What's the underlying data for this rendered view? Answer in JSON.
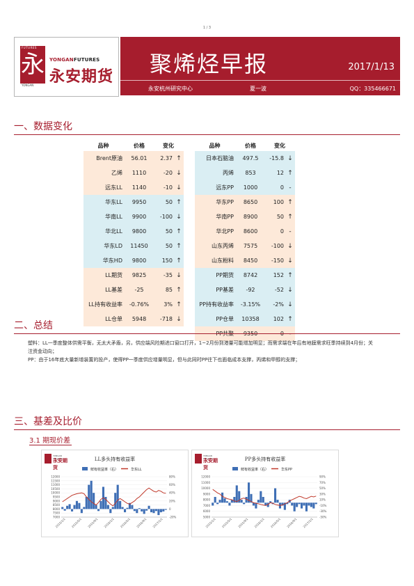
{
  "page_number": "1 / 3",
  "header": {
    "logo_futures": "FUTURES",
    "logo_yongan_small": "YONGAN",
    "logo_en_a": "YONGAN",
    "logo_en_b": "FUTURES",
    "logo_cn": "永安期货",
    "logo_glyph": "永",
    "title": "聚烯烃早报",
    "date": "2017/1/13",
    "org": "永安杭州研究中心",
    "author": "夏一波",
    "qq": "QQ：335466671",
    "brand_color": "#a61d2d"
  },
  "sections": {
    "s1": "一、数据变化",
    "s2": "二、总结",
    "s3": "三、基差及比价",
    "s3_1": "3.1 期现价差"
  },
  "table_headers": {
    "name": "品种",
    "price": "价格",
    "change": "变化"
  },
  "table_left": [
    {
      "name": "Brent原油",
      "price": "56.01",
      "change": "2.37",
      "arrow": "↑",
      "bg": "orange"
    },
    {
      "name": "乙烯",
      "price": "1110",
      "change": "-20",
      "arrow": "↓",
      "bg": "orange"
    },
    {
      "name": "远东LL",
      "price": "1140",
      "change": "-10",
      "arrow": "↓",
      "bg": "orange"
    },
    {
      "name": "华东LL",
      "price": "9950",
      "change": "50",
      "arrow": "↑",
      "bg": "blue"
    },
    {
      "name": "华南LL",
      "price": "9900",
      "change": "-100",
      "arrow": "↓",
      "bg": "blue"
    },
    {
      "name": "华北LL",
      "price": "9800",
      "change": "50",
      "arrow": "↑",
      "bg": "blue"
    },
    {
      "name": "华东LD",
      "price": "11450",
      "change": "50",
      "arrow": "↑",
      "bg": "blue"
    },
    {
      "name": "华东HD",
      "price": "9800",
      "change": "150",
      "arrow": "↑",
      "bg": "blue"
    },
    {
      "name": "LL期货",
      "price": "9825",
      "change": "-35",
      "arrow": "↓",
      "bg": "orange"
    },
    {
      "name": "LL基差",
      "price": "-25",
      "change": "85",
      "arrow": "↑",
      "bg": "orange"
    },
    {
      "name": "LL持有收益率",
      "price": "-0.76%",
      "change": "3%",
      "arrow": "↑",
      "bg": "orange"
    },
    {
      "name": "LL仓单",
      "price": "5948",
      "change": "-718",
      "arrow": "↓",
      "bg": "orange"
    }
  ],
  "table_right": [
    {
      "name": "日本石脑油",
      "price": "497.5",
      "change": "-15.8",
      "arrow": "↓",
      "bg": "blue"
    },
    {
      "name": "丙烯",
      "price": "853",
      "change": "12",
      "arrow": "↑",
      "bg": "blue"
    },
    {
      "name": "远东PP",
      "price": "1000",
      "change": "0",
      "arrow": "-",
      "bg": "blue"
    },
    {
      "name": "华东PP",
      "price": "8650",
      "change": "100",
      "arrow": "↑",
      "bg": "orange"
    },
    {
      "name": "华南PP",
      "price": "8900",
      "change": "50",
      "arrow": "↑",
      "bg": "orange"
    },
    {
      "name": "华北PP",
      "price": "8600",
      "change": "0",
      "arrow": "-",
      "bg": "orange"
    },
    {
      "name": "山东丙烯",
      "price": "7575",
      "change": "-100",
      "arrow": "↓",
      "bg": "orange"
    },
    {
      "name": "山东粉料",
      "price": "8450",
      "change": "-150",
      "arrow": "↓",
      "bg": "orange"
    },
    {
      "name": "PP期货",
      "price": "8742",
      "change": "152",
      "arrow": "↑",
      "bg": "blue"
    },
    {
      "name": "PP基差",
      "price": "-92",
      "change": "-52",
      "arrow": "↓",
      "bg": "blue"
    },
    {
      "name": "PP持有收益率",
      "price": "-3.15%",
      "change": "-2%",
      "arrow": "↓",
      "bg": "blue"
    },
    {
      "name": "PP仓单",
      "price": "10358",
      "change": "102",
      "arrow": "↑",
      "bg": "blue"
    },
    {
      "name": "PP共聚",
      "price": "9350",
      "change": "0",
      "arrow": "-",
      "bg": "orange"
    }
  ],
  "summary": {
    "p1": "塑料：LL一季度整体供需平衡，无太大矛盾，另，供应端风险期进口窗口打开，1~2月份到港量可能增加明显；而需求端在年后有地膜需求旺季持续到4月份；关注资金动向；",
    "p2": "PP：由于16年底大量新增装置的投产，使得PP一季度供应增量明显，但与此同时PP往下也面临成本支撑，丙烯和甲醇的支撑；"
  },
  "chart_logo": {
    "small": "YONGAN FUTURES",
    "cn": "永安期货"
  },
  "chart_data": [
    {
      "type": "line",
      "title": "LL多头持有收益率",
      "series": [
        {
          "name": "华东LL",
          "axis": "left",
          "color": "#c0392b",
          "values": [
            8900,
            9100,
            9300,
            9500,
            9700,
            9800,
            9900,
            9950,
            10000,
            9900,
            9500,
            9200,
            8900,
            8700,
            8500,
            8800,
            9200,
            9400,
            9200,
            8900,
            8600,
            8400,
            8700,
            9100,
            9300,
            9100,
            8900,
            8700,
            8600,
            8800,
            9000,
            9300,
            9500,
            9800,
            10100,
            10400,
            10600,
            10400,
            10200,
            10100,
            10300,
            10200,
            10000,
            9950
          ]
        },
        {
          "name": "鲜有收益率（右）",
          "axis": "right",
          "color": "#3f6fb5",
          "kind": "bar",
          "values": [
            5,
            -4,
            8,
            12,
            -6,
            10,
            20,
            15,
            -10,
            5,
            30,
            60,
            70,
            40,
            10,
            -5,
            20,
            55,
            30,
            10,
            -10,
            5,
            40,
            60,
            20,
            5,
            -8,
            3,
            15,
            10,
            -5,
            -10,
            2,
            -6,
            -12,
            -4,
            8,
            -8,
            -10,
            -5,
            -15,
            -8,
            -6,
            -2
          ]
        }
      ],
      "x_ticks": [
        "2015/1/1",
        "2015/5/1",
        "2015/9/1",
        "2016/1/1",
        "2016/5/1",
        "2016/9/1",
        "2017/1/1"
      ],
      "y_left_ticks": [
        "12000",
        "11500",
        "11000",
        "10500",
        "10000",
        "9500",
        "9000",
        "8500",
        "8000",
        "7500",
        "7000"
      ],
      "y_right_ticks": [
        "80%",
        "60%",
        "40%",
        "20%",
        "0",
        "-20%"
      ],
      "y_left_range": [
        7000,
        12000
      ],
      "y_right_range": [
        -20,
        80
      ]
    },
    {
      "type": "line",
      "title": "PP多头持有收益率",
      "series": [
        {
          "name": "华东PP",
          "axis": "left",
          "color": "#c0392b",
          "values": [
            9800,
            9500,
            9200,
            9000,
            8600,
            8400,
            8200,
            8100,
            8000,
            7800,
            7700,
            7900,
            8200,
            8300,
            8100,
            7900,
            7700,
            7500,
            7400,
            7300,
            7200,
            7100,
            7000,
            7200,
            7500,
            7400,
            7200,
            7100,
            7000,
            7100,
            7300,
            7500,
            7800,
            8000,
            8200,
            8400,
            8600,
            8500,
            8300,
            8200,
            8400,
            8600,
            8500,
            8650
          ]
        },
        {
          "name": "鲜有收益率（右）",
          "axis": "right",
          "color": "#3f6fb5",
          "kind": "bar",
          "values": [
            -10,
            20,
            -5,
            10,
            35,
            15,
            5,
            -10,
            10,
            20,
            60,
            40,
            10,
            -5,
            20,
            70,
            30,
            -10,
            -20,
            10,
            40,
            20,
            -10,
            -15,
            5,
            -5,
            50,
            10,
            -20,
            -10,
            -25,
            -5,
            10,
            -10,
            -30,
            -15,
            -5,
            -20,
            -10,
            -30,
            -10,
            -15,
            -20,
            -5
          ]
        }
      ],
      "x_ticks": [
        "2015/1/1",
        "2015/5/1",
        "2015/9/1",
        "2016/1/1",
        "2016/5/1",
        "2016/9/1",
        "2017/1/1"
      ],
      "y_left_ticks": [
        "12000",
        "11000",
        "10000",
        "9000",
        "8000",
        "7000",
        "6000",
        "5000"
      ],
      "y_right_ticks": [
        "90%",
        "70%",
        "50%",
        "30%",
        "10%",
        "-10%",
        "-30%",
        "-50%"
      ],
      "y_left_range": [
        5000,
        12000
      ],
      "y_right_range": [
        -50,
        90
      ]
    }
  ]
}
